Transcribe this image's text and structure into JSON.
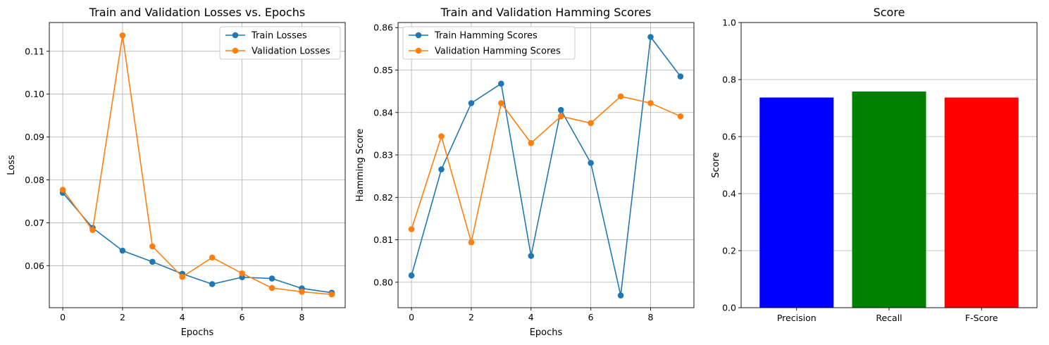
{
  "chart_data": [
    {
      "type": "line",
      "title": "Train and Validation Losses vs. Epochs",
      "xlabel": "Epochs",
      "ylabel": "Loss",
      "xlim": [
        -0.45,
        9.45
      ],
      "ylim": [
        0.0502,
        0.1167
      ],
      "xticks": [
        0,
        2,
        4,
        6,
        8
      ],
      "yticks": [
        0.06,
        0.07,
        0.08,
        0.09,
        0.1,
        0.11
      ],
      "ytick_decimals": 2,
      "grid": true,
      "legend_position": "upper right",
      "x": [
        0,
        1,
        2,
        3,
        4,
        5,
        6,
        7,
        8,
        9
      ],
      "series": [
        {
          "name": "Train Losses",
          "color": "#1f77b4",
          "values": [
            0.077,
            0.0688,
            0.0635,
            0.0609,
            0.0581,
            0.0557,
            0.0573,
            0.057,
            0.0547,
            0.0537
          ]
        },
        {
          "name": "Validation Losses",
          "color": "#ff7f0e",
          "values": [
            0.0777,
            0.0683,
            0.1137,
            0.0645,
            0.0574,
            0.0619,
            0.0582,
            0.0548,
            0.0539,
            0.0533
          ]
        }
      ]
    },
    {
      "type": "line",
      "title": "Train and Validation Hamming Scores",
      "xlabel": "Epochs",
      "ylabel": "Hamming Score",
      "xlim": [
        -0.45,
        9.45
      ],
      "ylim": [
        0.794,
        0.8612
      ],
      "xticks": [
        0,
        2,
        4,
        6,
        8
      ],
      "yticks": [
        0.8,
        0.81,
        0.82,
        0.83,
        0.84,
        0.85,
        0.86
      ],
      "ytick_decimals": 2,
      "grid": true,
      "legend_position": "upper left",
      "x": [
        0,
        1,
        2,
        3,
        4,
        5,
        6,
        7,
        8,
        9
      ],
      "series": [
        {
          "name": "Train Hamming Scores",
          "color": "#1f77b4",
          "values": [
            0.8016,
            0.8266,
            0.8422,
            0.8468,
            0.8062,
            0.8406,
            0.8281,
            0.7969,
            0.8578,
            0.8485
          ]
        },
        {
          "name": "Validation Hamming Scores",
          "color": "#ff7f0e",
          "values": [
            0.8125,
            0.8344,
            0.8094,
            0.8422,
            0.8328,
            0.8391,
            0.8375,
            0.8438,
            0.8422,
            0.8391
          ]
        }
      ]
    },
    {
      "type": "bar",
      "title": "Score",
      "xlabel": "",
      "ylabel": "Score",
      "ylim": [
        0,
        1
      ],
      "yticks": [
        0.0,
        0.2,
        0.4,
        0.6,
        0.8,
        1.0
      ],
      "ytick_decimals": 1,
      "grid": true,
      "categories": [
        "Precision",
        "Recall",
        "F-Score"
      ],
      "values": [
        0.737,
        0.758,
        0.737
      ],
      "colors": [
        "#0000ff",
        "#008000",
        "#ff0000"
      ]
    }
  ]
}
